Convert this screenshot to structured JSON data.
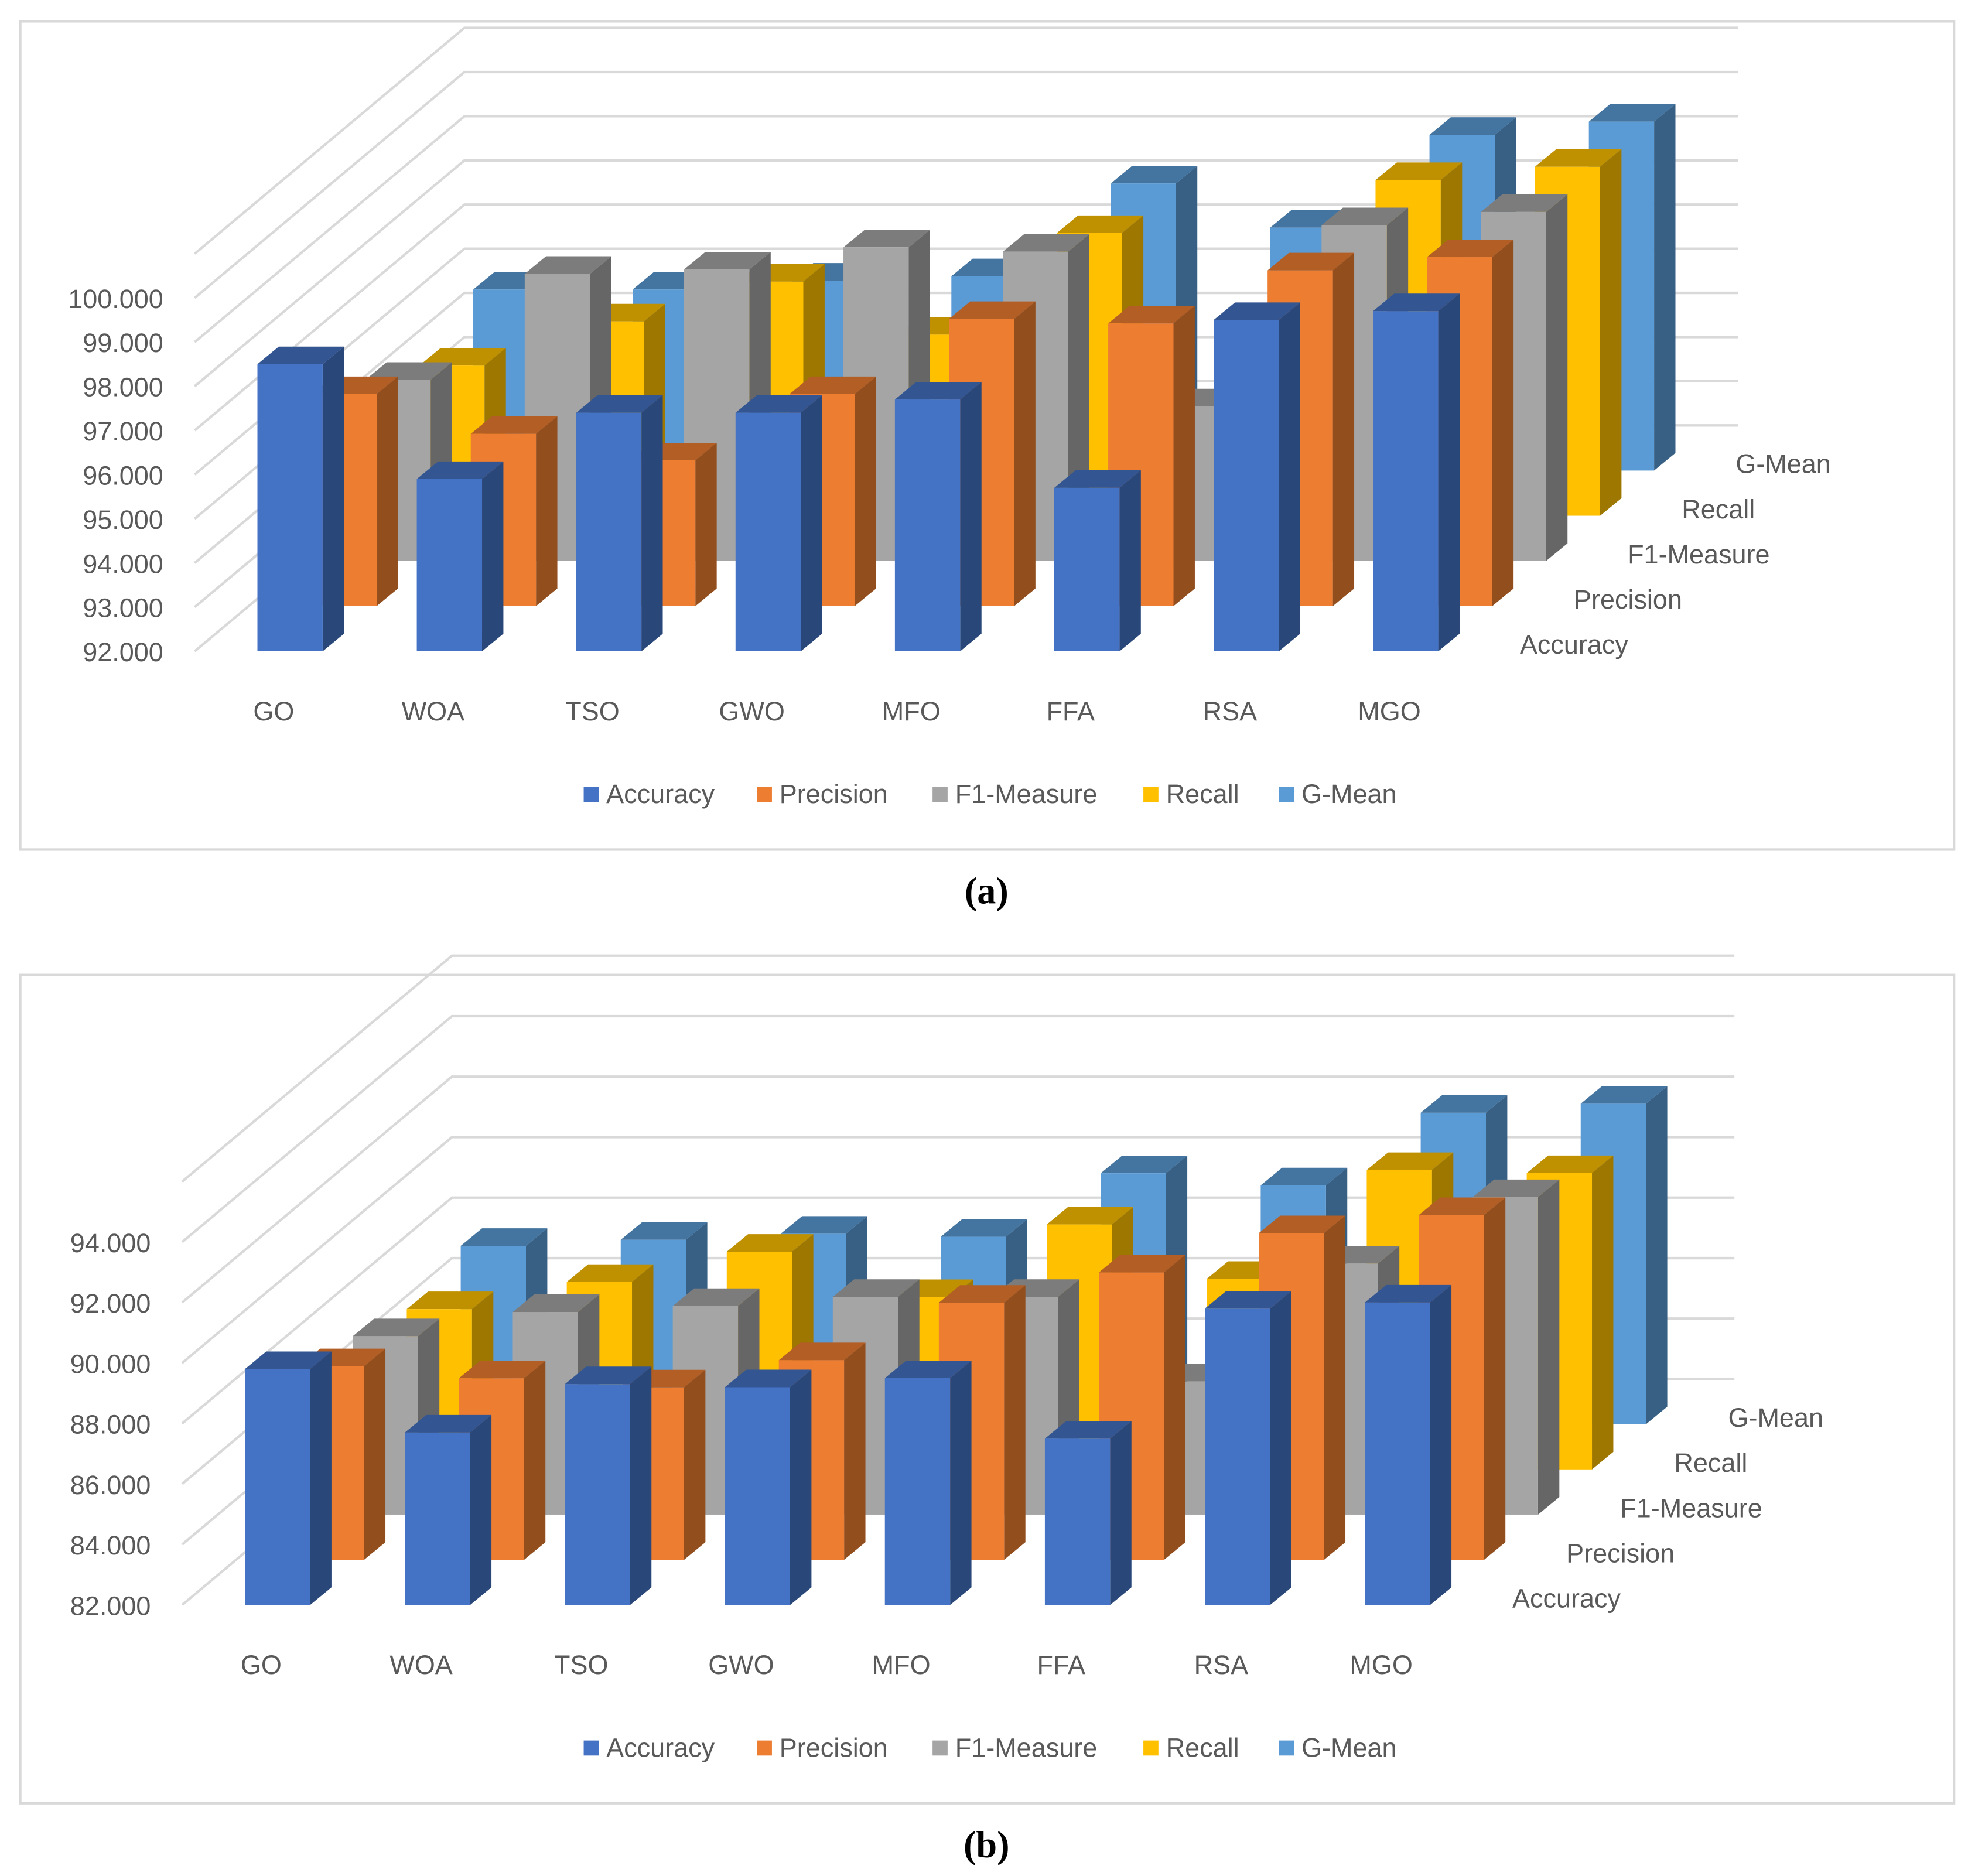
{
  "captions": [
    "(a)",
    "(b)"
  ],
  "colors": {
    "Accuracy": "#4472c4",
    "Precision": "#ed7d31",
    "F1-Measure": "#a5a5a5",
    "Recall": "#ffc000",
    "G-Mean": "#5b9bd5"
  },
  "chart_data": [
    {
      "type": "bar",
      "variant": "3d-column",
      "title": "",
      "categories": [
        "GO",
        "WOA",
        "TSO",
        "GWO",
        "MFO",
        "FFA",
        "RSA",
        "MGO"
      ],
      "y_ticks": [
        "92.000",
        "93.000",
        "94.000",
        "95.000",
        "96.000",
        "97.000",
        "98.000",
        "99.000",
        "100.000"
      ],
      "ylim": [
        92,
        101
      ],
      "grid": true,
      "legend": "bottom",
      "series": [
        {
          "name": "Accuracy",
          "values": [
            98.5,
            95.9,
            97.4,
            97.4,
            97.7,
            95.7,
            99.5,
            99.7
          ]
        },
        {
          "name": "Precision",
          "values": [
            96.8,
            95.9,
            95.3,
            96.8,
            98.5,
            98.4,
            99.6,
            99.9
          ]
        },
        {
          "name": "F1-Measure",
          "values": [
            96.1,
            98.5,
            98.6,
            99.1,
            99.0,
            95.5,
            99.6,
            99.9
          ]
        },
        {
          "name": "Recall",
          "values": [
            95.4,
            96.4,
            97.3,
            96.1,
            98.4,
            95.5,
            99.6,
            99.9
          ]
        },
        {
          "name": "G-Mean",
          "values": [
            96.1,
            96.1,
            96.3,
            96.4,
            98.5,
            97.5,
            99.6,
            99.9
          ]
        }
      ]
    },
    {
      "type": "bar",
      "variant": "3d-column",
      "title": "",
      "categories": [
        "GO",
        "WOA",
        "TSO",
        "GWO",
        "MFO",
        "FFA",
        "RSA",
        "MGO"
      ],
      "y_ticks": [
        "82.000",
        "84.000",
        "86.000",
        "88.000",
        "90.000",
        "92.000",
        "94.000"
      ],
      "ylim": [
        82,
        96
      ],
      "grid": true,
      "legend": "bottom",
      "series": [
        {
          "name": "Accuracy",
          "values": [
            89.8,
            87.7,
            89.3,
            89.2,
            89.5,
            87.5,
            91.8,
            92.0
          ]
        },
        {
          "name": "Precision",
          "values": [
            88.4,
            88.0,
            87.7,
            88.6,
            90.5,
            91.5,
            92.8,
            93.4
          ]
        },
        {
          "name": "F1-Measure",
          "values": [
            87.9,
            88.7,
            88.9,
            89.2,
            89.2,
            86.4,
            90.3,
            92.5
          ]
        },
        {
          "name": "Recall",
          "values": [
            87.3,
            88.2,
            89.2,
            87.7,
            90.1,
            88.3,
            91.9,
            91.8
          ]
        },
        {
          "name": "G-Mean",
          "values": [
            87.9,
            88.1,
            88.3,
            88.2,
            90.3,
            89.9,
            92.3,
            92.6
          ]
        }
      ]
    }
  ]
}
